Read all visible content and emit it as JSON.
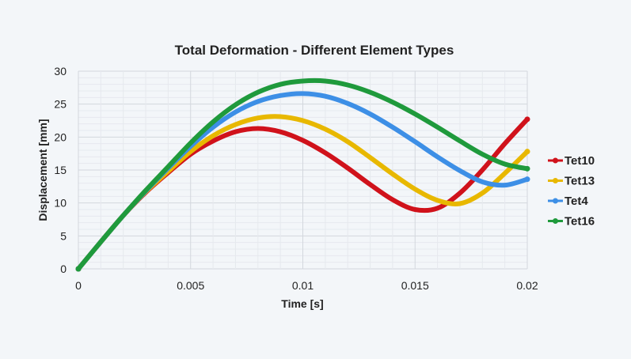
{
  "chart_data": {
    "type": "line",
    "title": "Total Deformation - Different Element Types",
    "xlabel": "Time [s]",
    "ylabel": "Displacement [mm]",
    "xlim": [
      0,
      0.02
    ],
    "ylim": [
      0,
      30
    ],
    "x_ticks": [
      "0",
      "0.005",
      "0.01",
      "0.015",
      "0.02"
    ],
    "y_ticks": [
      "0",
      "5",
      "10",
      "15",
      "20",
      "25",
      "30"
    ],
    "grid": true,
    "legend_position": "right",
    "x": [
      0,
      0.001,
      0.002,
      0.003,
      0.004,
      0.005,
      0.006,
      0.007,
      0.008,
      0.009,
      0.01,
      0.011,
      0.012,
      0.013,
      0.014,
      0.015,
      0.016,
      0.017,
      0.018,
      0.019,
      0.02
    ],
    "series": [
      {
        "name": "Tet10",
        "color": "#d0121b",
        "values": [
          0,
          4.1,
          8.1,
          11.6,
          14.6,
          17.4,
          19.4,
          20.8,
          21.3,
          20.8,
          19.5,
          17.6,
          15.3,
          12.8,
          10.5,
          9.0,
          9.2,
          11.5,
          15.0,
          19.0,
          22.7
        ]
      },
      {
        "name": "Tet13",
        "color": "#e8b800",
        "values": [
          0,
          4.1,
          8.1,
          11.7,
          14.8,
          17.8,
          20.2,
          21.9,
          22.9,
          23.1,
          22.5,
          21.2,
          19.3,
          16.9,
          14.4,
          12.1,
          10.4,
          9.9,
          11.5,
          14.5,
          17.8
        ]
      },
      {
        "name": "Tet4",
        "color": "#3d8fe6",
        "values": [
          0,
          4.1,
          8.1,
          11.8,
          15.3,
          18.6,
          21.5,
          23.8,
          25.4,
          26.3,
          26.6,
          26.2,
          25.1,
          23.5,
          21.5,
          19.3,
          17.0,
          14.9,
          13.2,
          12.7,
          13.6
        ]
      },
      {
        "name": "Tet16",
        "color": "#1f9a3c",
        "values": [
          0,
          4.1,
          8.1,
          11.9,
          15.5,
          19.1,
          22.3,
          24.9,
          26.8,
          28.0,
          28.5,
          28.5,
          27.9,
          26.8,
          25.3,
          23.5,
          21.5,
          19.4,
          17.4,
          15.9,
          15.2
        ]
      }
    ]
  }
}
